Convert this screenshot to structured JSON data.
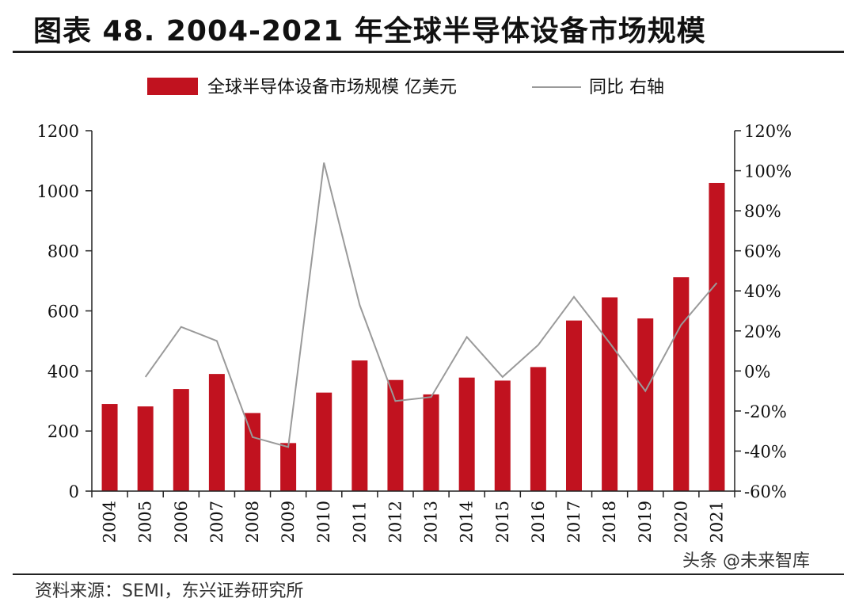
{
  "header": {
    "title": "图表 48. 2004-2021 年全球半导体设备市场规模"
  },
  "footer": {
    "source": "资料来源：SEMI，东兴证券研究所",
    "watermark": "头条 @未来智库"
  },
  "colors": {
    "bar": "#c1121f",
    "line": "#9a9a9a",
    "axis": "#222222"
  },
  "chart_data": {
    "type": "bar",
    "title": "",
    "categories": [
      "2004",
      "2005",
      "2006",
      "2007",
      "2008",
      "2009",
      "2010",
      "2011",
      "2012",
      "2013",
      "2014",
      "2015",
      "2016",
      "2017",
      "2018",
      "2019",
      "2020",
      "2021"
    ],
    "series": [
      {
        "name": "全球半导体设备市场规模 亿美元",
        "type": "bar",
        "axis": "left",
        "values": [
          290,
          282,
          340,
          390,
          260,
          160,
          328,
          435,
          370,
          322,
          378,
          368,
          413,
          568,
          645,
          575,
          712,
          1026
        ]
      },
      {
        "name": "同比 右轴",
        "type": "line",
        "axis": "right",
        "values": [
          null,
          -3,
          22,
          15,
          -33,
          -38,
          104,
          33,
          -15,
          -13,
          17,
          -3,
          13,
          37,
          14,
          -10,
          23,
          44
        ]
      }
    ],
    "y_left": {
      "min": 0,
      "max": 1200,
      "ticks": [
        "0",
        "200",
        "400",
        "600",
        "800",
        "1000",
        "1200"
      ]
    },
    "y_right": {
      "min": -60,
      "max": 120,
      "ticks": [
        "-60%",
        "-40%",
        "-20%",
        "0%",
        "20%",
        "40%",
        "60%",
        "80%",
        "100%",
        "120%"
      ]
    },
    "legend_position": "top-center"
  }
}
